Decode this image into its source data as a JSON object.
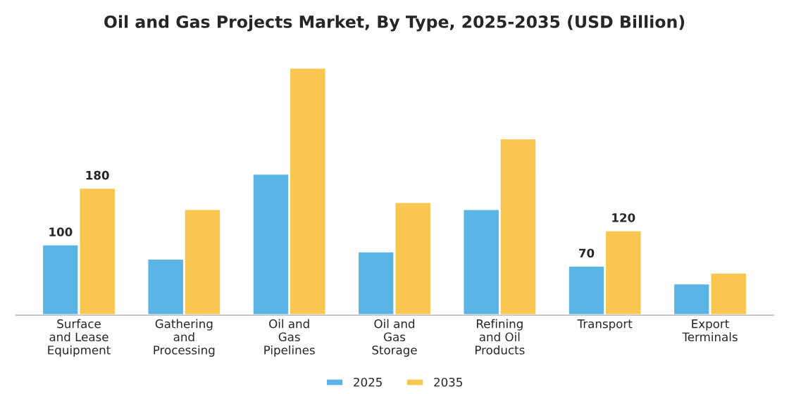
{
  "chart_data": {
    "type": "bar",
    "title": "Oil and Gas Projects Market, By Type, 2025-2035 (USD Billion)",
    "categories": [
      "Surface\nand Lease\nEquipment",
      "Gathering\nand\nProcessing",
      "Oil and\nGas\nPipelines",
      "Oil and\nGas\nStorage",
      "Refining\nand Oil\nProducts",
      "Transport",
      "Export\nTerminals"
    ],
    "series": [
      {
        "name": "2025",
        "color": "#5ab4e5",
        "values": [
          100,
          80,
          200,
          90,
          150,
          70,
          45
        ],
        "value_labels": [
          "100",
          null,
          null,
          null,
          null,
          "70",
          null
        ]
      },
      {
        "name": "2035",
        "color": "#f9c74f",
        "values": [
          180,
          150,
          350,
          160,
          250,
          120,
          60
        ],
        "value_labels": [
          "180",
          null,
          null,
          null,
          null,
          "120",
          null
        ]
      }
    ],
    "legend": "bottom",
    "grid": false
  }
}
